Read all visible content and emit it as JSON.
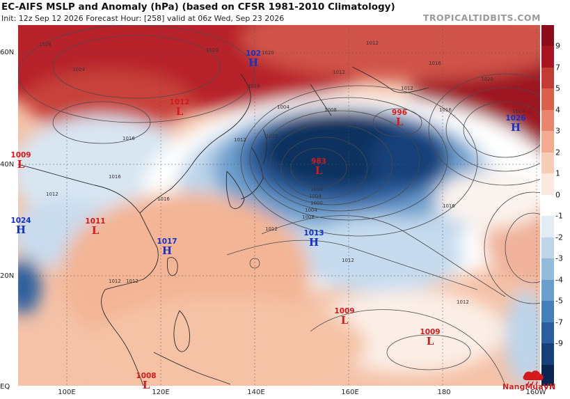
{
  "header": {
    "title": "EC-AIFS MSLP and Anomaly (hPa) (based on CFSR 1981-2010 Climatology)",
    "subtitle": "Init: 12z Sep 12 2026   Forecast Hour: [258]   valid at 06z Wed, Sep 23 2026",
    "watermark": "TROPICALTIDBITS.COM"
  },
  "map": {
    "y_labels": [
      {
        "text": "60N"
      },
      {
        "text": "40N"
      },
      {
        "text": "20N"
      },
      {
        "text": "EQ"
      }
    ],
    "x_labels": [
      {
        "text": "100E"
      },
      {
        "text": "120E"
      },
      {
        "text": "140E"
      },
      {
        "text": "160E"
      },
      {
        "text": "180"
      },
      {
        "text": "160W"
      }
    ],
    "isobar_labels": [
      "1028",
      "1020",
      "1024",
      "1020",
      "1012",
      "1016",
      "1012",
      "1004",
      "1008",
      "1012",
      "1016",
      "1012",
      "1016",
      "1020",
      "1016",
      "1024",
      "1016",
      "1012",
      "1008",
      "1004",
      "1000",
      "1004",
      "1008",
      "1016",
      "1012",
      "1012",
      "1012",
      "1012",
      "1016",
      "1012",
      "1012"
    ],
    "pressure_systems": [
      {
        "type": "H",
        "value": "102",
        "color": "#1432c8"
      },
      {
        "type": "L",
        "value": "1012",
        "color": "#d41a1a"
      },
      {
        "type": "L",
        "value": "1009",
        "color": "#d41a1a"
      },
      {
        "type": "L",
        "value": "983",
        "color": "#d41a1a"
      },
      {
        "type": "L",
        "value": "996",
        "color": "#d41a1a"
      },
      {
        "type": "H",
        "value": "1026",
        "color": "#1432c8"
      },
      {
        "type": "H",
        "value": "1024",
        "color": "#1432c8"
      },
      {
        "type": "L",
        "value": "1011",
        "color": "#d41a1a"
      },
      {
        "type": "H",
        "value": "1017",
        "color": "#1432c8"
      },
      {
        "type": "H",
        "value": "1013",
        "color": "#1432c8"
      },
      {
        "type": "L",
        "value": "1009",
        "color": "#d41a1a"
      },
      {
        "type": "L",
        "value": "1009",
        "color": "#d41a1a"
      },
      {
        "type": "L",
        "value": "1008",
        "color": "#d41a1a"
      }
    ]
  },
  "colorbar": {
    "labels": [
      "9",
      "7",
      "5",
      "4",
      "3",
      "2",
      "1",
      "0",
      "-1",
      "-2",
      "-3",
      "-4",
      "-5",
      "-7",
      "-9"
    ],
    "colors": [
      "#8c0d1a",
      "#a8141f",
      "#c23b34",
      "#d9604a",
      "#e8866b",
      "#f2aa90",
      "#f8cdb8",
      "#fbe8de",
      "#ffffff",
      "#e2ecf5",
      "#bfd6ea",
      "#93bcdc",
      "#6a9fcd",
      "#447fb9",
      "#2a5e9e",
      "#173f79",
      "#0b2553"
    ]
  },
  "logo": {
    "text": "NangMuaVN"
  }
}
